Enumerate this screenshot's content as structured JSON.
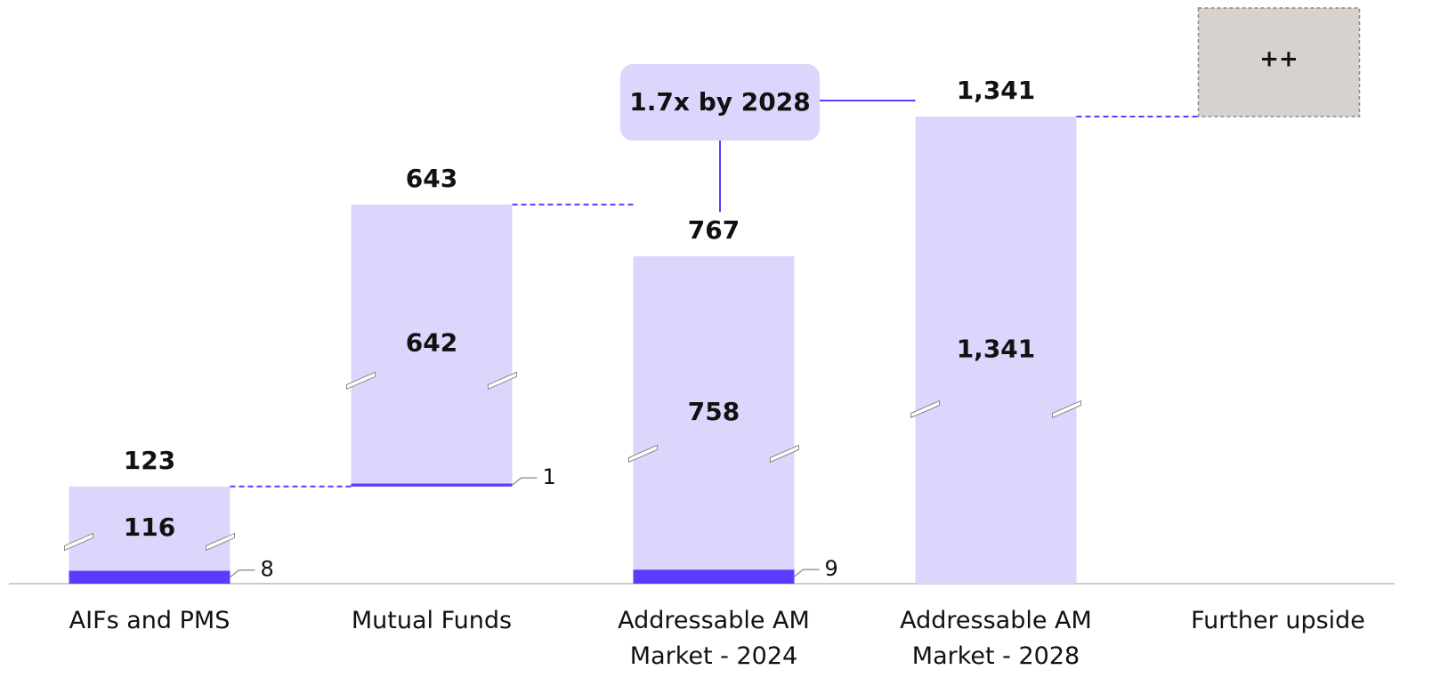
{
  "chart_data": {
    "type": "waterfall",
    "categories": [
      "AIFs and PMS",
      "Mutual Funds",
      "Addressable AM Market - 2024",
      "Addressable AM Market - 2028",
      "Further upside"
    ],
    "measures": [
      "relative",
      "relative",
      "total",
      "total",
      null
    ],
    "series": [
      {
        "color": "#5b3cff",
        "values": [
          8,
          1,
          9,
          null,
          null
        ],
        "value_labels": [
          "8",
          "1",
          "9",
          null,
          null
        ]
      },
      {
        "color": "#dcd6fc",
        "values": [
          116,
          642,
          758,
          1341,
          null
        ],
        "value_labels": [
          "116",
          "642",
          "758",
          "1,341",
          null
        ]
      }
    ],
    "totals": [
      123,
      643,
      767,
      1341,
      null
    ],
    "total_labels": [
      "123",
      "643",
      "767",
      "1,341",
      null
    ],
    "upside_label": "++",
    "upside_color": "#d8d2cf",
    "annotation": "1.7x by 2028"
  }
}
